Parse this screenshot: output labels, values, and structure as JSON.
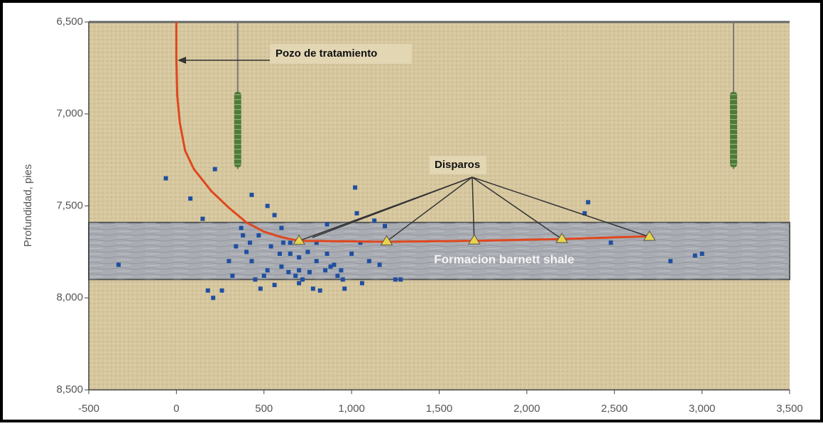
{
  "chart_data": {
    "type": "scatter",
    "ylabel": "Profundidad, pies",
    "xlim": [
      -500,
      3500
    ],
    "ylim": [
      8500,
      6500
    ],
    "xticks": [
      -500,
      0,
      500,
      {
        "value": 1000,
        "label": "1,000"
      },
      {
        "value": 1500,
        "label": "1,500"
      },
      {
        "value": 2000,
        "label": "2,000"
      },
      {
        "value": 2500,
        "label": "2,500"
      },
      {
        "value": 3000,
        "label": "3,000"
      },
      {
        "value": 3500,
        "label": "3,500"
      }
    ],
    "yticks": [
      {
        "value": 6500,
        "label": "6,500"
      },
      {
        "value": 7000,
        "label": "7,000"
      },
      {
        "value": 7500,
        "label": "7,500"
      },
      {
        "value": 8000,
        "label": "8,000"
      },
      {
        "value": 8500,
        "label": "8,500"
      }
    ],
    "background_color": "#d6c79f",
    "formation": {
      "top": 7590,
      "bottom": 7900,
      "color": "#a9acb2",
      "label": "Formacion barnett shale"
    },
    "annotations": {
      "well": "Pozo de tratamiento",
      "shots": "Disparos"
    },
    "series": [
      {
        "mode": "line",
        "color": "#7a7a7a",
        "x": [
          350,
          350
        ],
        "values": [
          6500,
          7300
        ]
      },
      {
        "mode": "line",
        "color": "#7a7a7a",
        "x": [
          3180,
          3180
        ],
        "values": [
          6500,
          7300
        ]
      },
      {
        "mode": "array",
        "color": "#4f7a3a",
        "x": [
          350,
          350
        ],
        "values": [
          6880,
          7290
        ]
      },
      {
        "mode": "array",
        "color": "#4f7a3a",
        "x": [
          3180,
          3180
        ],
        "values": [
          6880,
          7290
        ]
      },
      {
        "mode": "markers",
        "color": "#1f4fa0",
        "x": [
          -330,
          -60,
          80,
          150,
          220,
          180,
          370,
          430,
          470,
          520,
          560,
          600,
          650,
          700,
          750,
          800,
          850,
          900,
          950,
          1000,
          1050,
          1100,
          1020,
          1060,
          1130,
          1250,
          1280,
          1190,
          450,
          480,
          520,
          560,
          610,
          680,
          720,
          780,
          820,
          880,
          920,
          960,
          400,
          430,
          500,
          540,
          590,
          640,
          700,
          760,
          800,
          860,
          300,
          340,
          380,
          420,
          260,
          210,
          320,
          600,
          650,
          700,
          2350,
          2330,
          2480,
          2820,
          2960,
          3000,
          1030,
          1160,
          860,
          940
        ],
        "values": [
          7820,
          7350,
          7460,
          7570,
          7300,
          7960,
          7620,
          7440,
          7660,
          7500,
          7550,
          7620,
          7700,
          7780,
          7750,
          7800,
          7850,
          7820,
          7900,
          7760,
          7700,
          7800,
          7400,
          7920,
          7580,
          7900,
          7900,
          7610,
          7900,
          7950,
          7850,
          7930,
          7700,
          7880,
          7900,
          7950,
          7960,
          7830,
          7880,
          7950,
          7750,
          7800,
          7880,
          7720,
          7760,
          7860,
          7920,
          7860,
          7700,
          7760,
          7800,
          7720,
          7660,
          7700,
          7960,
          8000,
          7880,
          7830,
          7760,
          7850,
          7480,
          7540,
          7700,
          7800,
          7770,
          7760,
          7540,
          7820,
          7600,
          7850
        ]
      },
      {
        "mode": "line",
        "color": "#e0471e",
        "x": [
          0,
          0,
          5,
          20,
          50,
          100,
          200,
          300,
          400,
          500,
          600,
          700,
          1200,
          1700,
          2200,
          2700
        ],
        "values": [
          6500,
          6700,
          6900,
          7050,
          7200,
          7300,
          7420,
          7510,
          7590,
          7640,
          7670,
          7690,
          7695,
          7690,
          7680,
          7665
        ]
      },
      {
        "mode": "triangles",
        "color": "#e8d44a",
        "x": [
          700,
          1200,
          1700,
          2200,
          2700
        ],
        "values": [
          7690,
          7693,
          7688,
          7680,
          7668
        ]
      }
    ]
  }
}
